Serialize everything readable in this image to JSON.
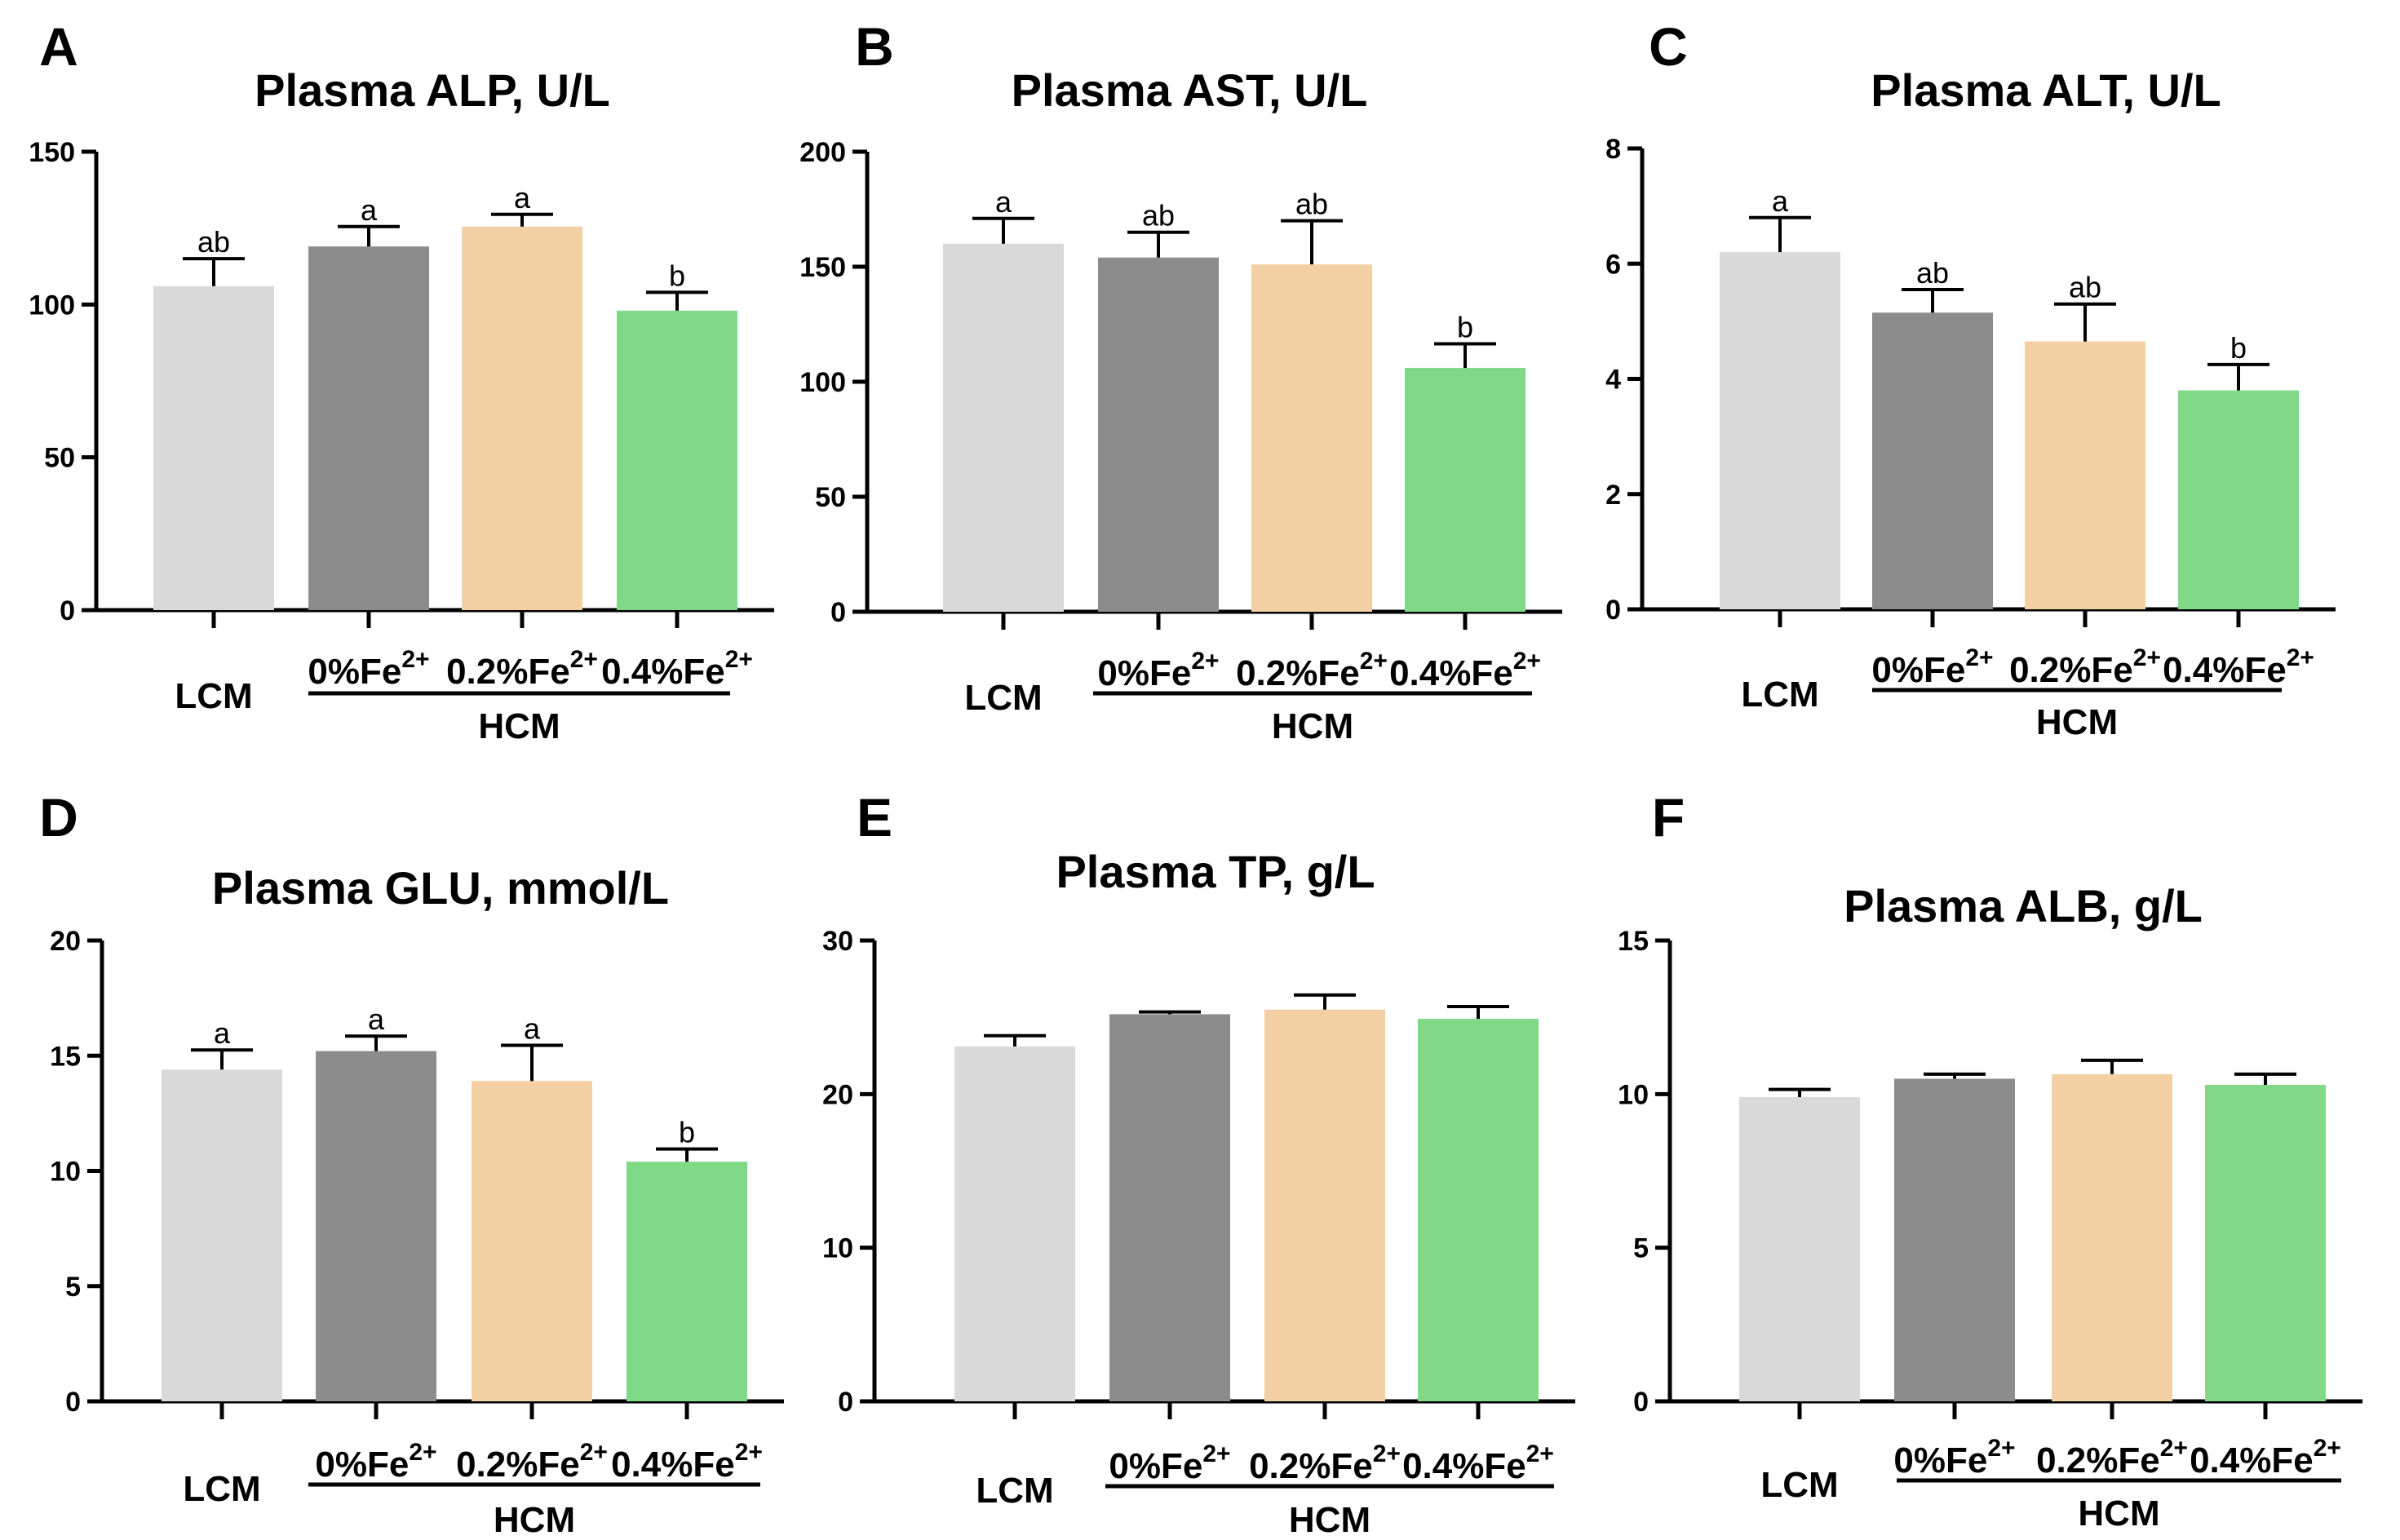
{
  "figure": {
    "colors": {
      "LCM": "#d9d9d9",
      "0%Fe2+": "#8c8c8c",
      "0.2%Fe2+": "#f2d0a4",
      "0.4%Fe2+": "#80d987",
      "axis": "#000000"
    },
    "x_label_parts": [
      {
        "base": "LCM",
        "sup": ""
      },
      {
        "base": "0%Fe",
        "sup": "2+"
      },
      {
        "base": "0.2%Fe",
        "sup": "2+"
      },
      {
        "base": "0.4%Fe",
        "sup": "2+"
      }
    ],
    "group_label": "HCM"
  },
  "chart_data": [
    {
      "panel": "A",
      "type": "bar",
      "title": "Plasma ALP, U/L",
      "categories": [
        "LCM",
        "0%Fe2+",
        "0.2%Fe2+",
        "0.4%Fe2+"
      ],
      "values": [
        106,
        119,
        125.5,
        98
      ],
      "errors": [
        9,
        6.5,
        4,
        6
      ],
      "letters": [
        "ab",
        "a",
        "a",
        "b"
      ],
      "ylim": [
        0,
        150
      ],
      "yticks": [
        0,
        50,
        100,
        150
      ]
    },
    {
      "panel": "B",
      "type": "bar",
      "title": "Plasma AST, U/L",
      "categories": [
        "LCM",
        "0%Fe2+",
        "0.2%Fe2+",
        "0.4%Fe2+"
      ],
      "values": [
        160,
        154,
        151,
        106
      ],
      "errors": [
        11,
        11,
        19,
        10.5
      ],
      "letters": [
        "a",
        "ab",
        "ab",
        "b"
      ],
      "ylim": [
        0,
        200
      ],
      "yticks": [
        0,
        50,
        100,
        150,
        200
      ]
    },
    {
      "panel": "C",
      "type": "bar",
      "title": "Plasma ALT, U/L",
      "categories": [
        "LCM",
        "0%Fe2+",
        "0.2%Fe2+",
        "0.4%Fe2+"
      ],
      "values": [
        6.2,
        5.15,
        4.65,
        3.8
      ],
      "errors": [
        0.6,
        0.4,
        0.65,
        0.45
      ],
      "letters": [
        "a",
        "ab",
        "ab",
        "b"
      ],
      "ylim": [
        0,
        8
      ],
      "yticks": [
        0,
        2,
        4,
        6,
        8
      ]
    },
    {
      "panel": "D",
      "type": "bar",
      "title": "Plasma GLU, mmol/L",
      "categories": [
        "LCM",
        "0%Fe2+",
        "0.2%Fe2+",
        "0.4%Fe2+"
      ],
      "values": [
        14.4,
        15.2,
        13.9,
        10.4
      ],
      "errors": [
        0.85,
        0.65,
        1.55,
        0.55
      ],
      "letters": [
        "a",
        "a",
        "a",
        "b"
      ],
      "ylim": [
        0,
        20
      ],
      "yticks": [
        0,
        5,
        10,
        15,
        20
      ]
    },
    {
      "panel": "E",
      "type": "bar",
      "title": "Plasma TP, g/L",
      "categories": [
        "LCM",
        "0%Fe2+",
        "0.2%Fe2+",
        "0.4%Fe2+"
      ],
      "values": [
        23.1,
        25.2,
        25.5,
        24.9
      ],
      "errors": [
        0.7,
        0.15,
        0.95,
        0.8
      ],
      "letters": [
        "",
        "",
        "",
        ""
      ],
      "ylim": [
        0,
        30
      ],
      "yticks": [
        0,
        10,
        20,
        30
      ]
    },
    {
      "panel": "F",
      "type": "bar",
      "title": "Plasma ALB, g/L",
      "categories": [
        "LCM",
        "0%Fe2+",
        "0.2%Fe2+",
        "0.4%Fe2+"
      ],
      "values": [
        9.9,
        10.5,
        10.65,
        10.3
      ],
      "errors": [
        0.25,
        0.15,
        0.45,
        0.35
      ],
      "letters": [
        "",
        "",
        "",
        ""
      ],
      "ylim": [
        0,
        15
      ],
      "yticks": [
        0,
        5,
        10,
        15
      ]
    }
  ]
}
